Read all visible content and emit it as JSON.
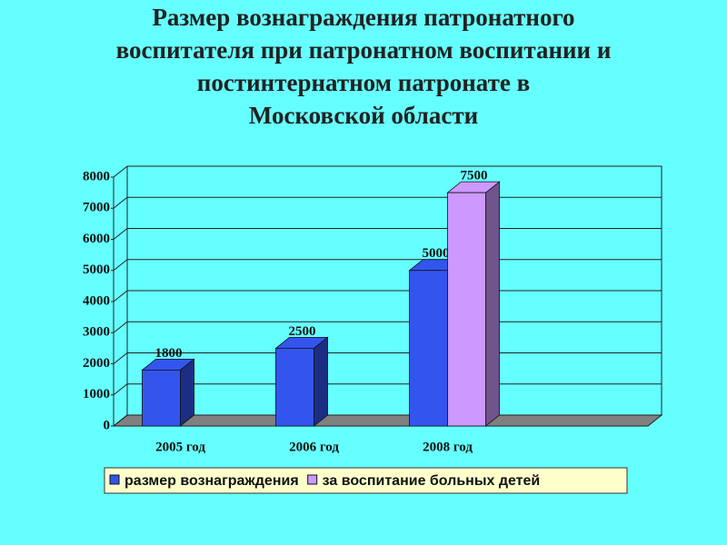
{
  "chart_data": {
    "type": "bar3d",
    "title": [
      "Размер вознаграждения патронатного",
      "воспитателя при патронатном воспитании и",
      "постинтернатном патронате в",
      "Московской области"
    ],
    "categories": [
      "2005 год",
      "2006 год",
      "2008 год",
      null
    ],
    "series": [
      {
        "name": "размер вознаграждения",
        "color": "#3355ee",
        "values": [
          1800,
          2500,
          5000,
          null
        ]
      },
      {
        "name": "за воспитание больных детей",
        "color": "#cc99ff",
        "values": [
          null,
          null,
          7500,
          null
        ]
      }
    ],
    "ylim": [
      0,
      8000
    ],
    "yticks": [
      0,
      1000,
      2000,
      3000,
      4000,
      5000,
      6000,
      7000,
      8000
    ],
    "grid": true
  }
}
